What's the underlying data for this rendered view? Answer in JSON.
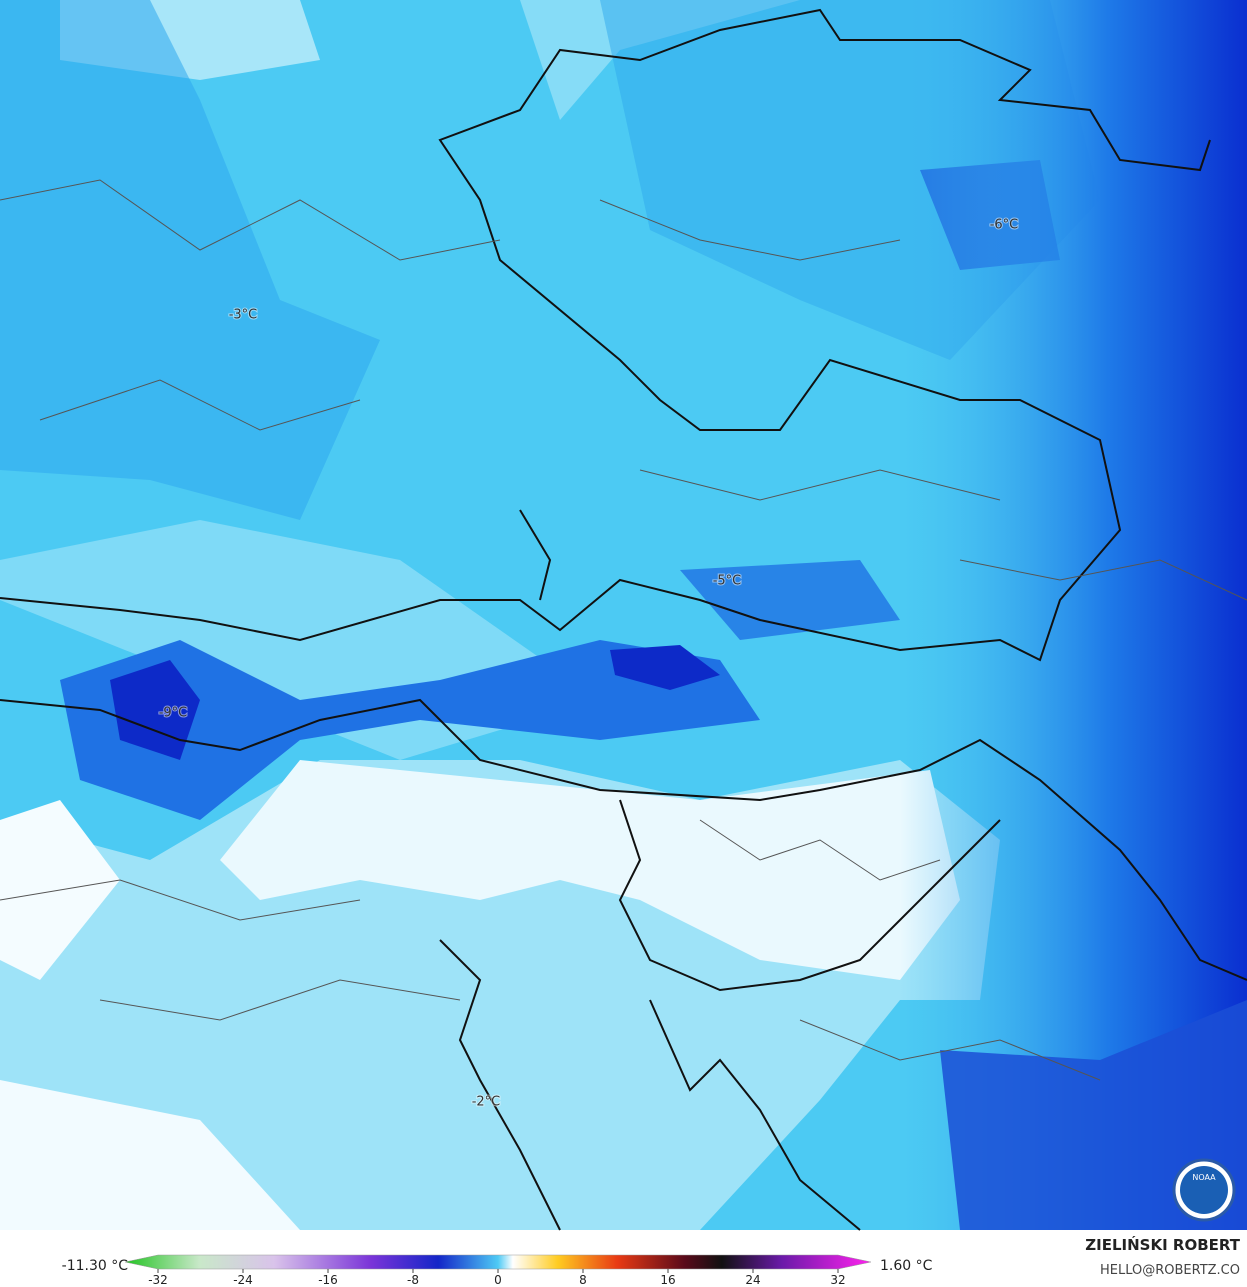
{
  "map": {
    "labels": [
      "-3°C",
      "-6°C",
      "-5°C",
      "-9°C",
      "-2°C"
    ],
    "logo": "NOAA"
  },
  "legend": {
    "min_label": "-11.30 °C",
    "max_label": "1.60 °C",
    "ticks": [
      -32,
      -24,
      -16,
      -8,
      0,
      8,
      16,
      24,
      32
    ]
  },
  "credit": {
    "name": "ZIELIŃSKI ROBERT",
    "contact": "HELLO@ROBERTZ.CO"
  }
}
